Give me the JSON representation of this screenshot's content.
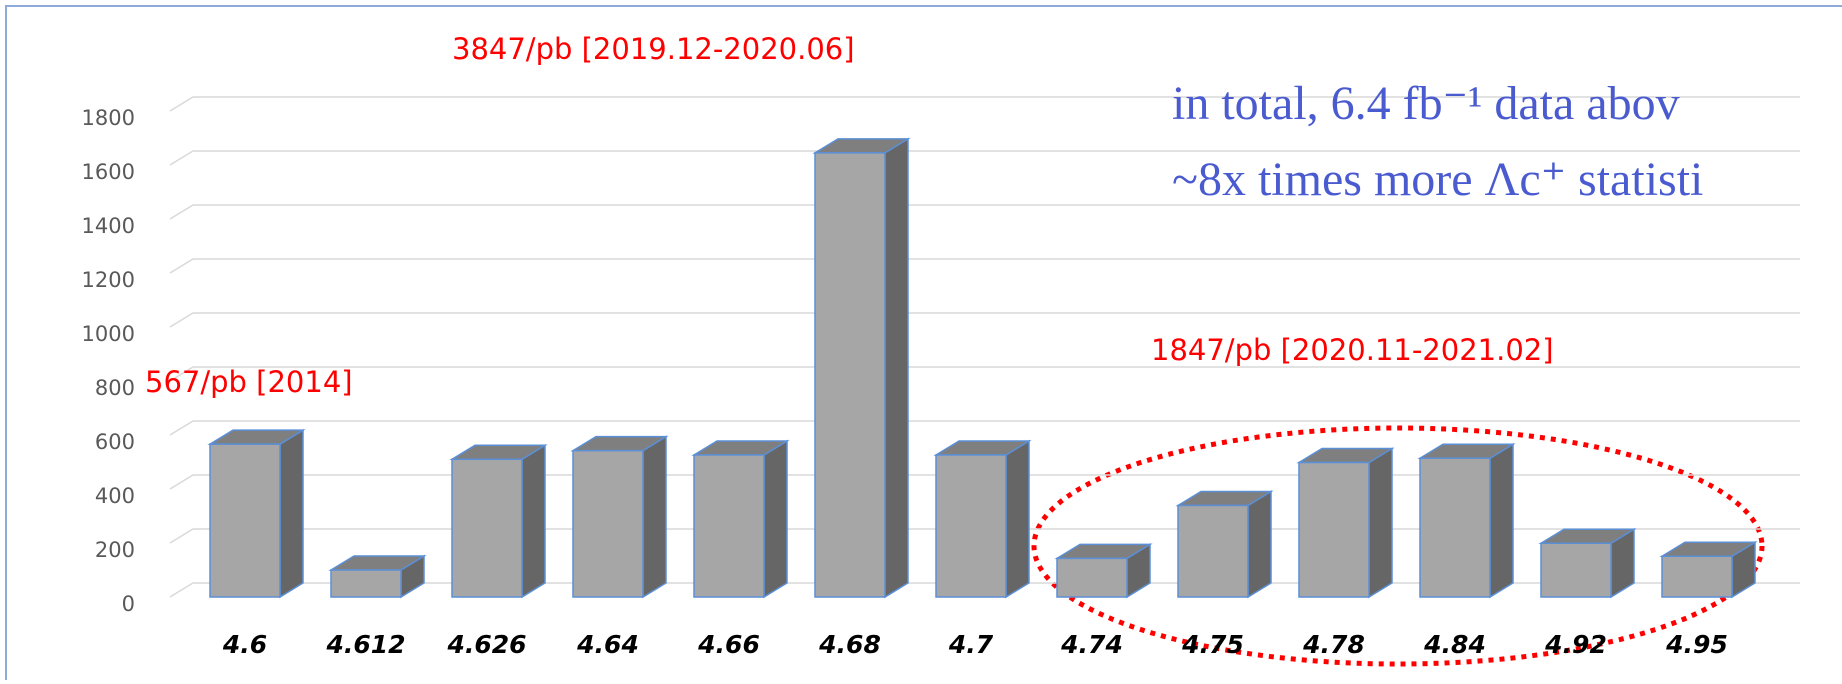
{
  "chart_data": {
    "type": "bar3d",
    "categories": [
      "4.6",
      "4.612",
      "4.626",
      "4.64",
      "4.66",
      "4.68",
      "4.7",
      "4.74",
      "4.75",
      "4.78",
      "4.84",
      "4.92",
      "4.95"
    ],
    "values": [
      566,
      100,
      510,
      542,
      526,
      1645,
      526,
      143,
      339,
      498,
      514,
      199,
      151
    ],
    "color": "#a6a6a6",
    "ylim": [
      0,
      1800
    ],
    "yticks": [
      0,
      200,
      400,
      600,
      800,
      1000,
      1200,
      1400,
      1600,
      1800
    ],
    "grid": true,
    "annotations": [
      "3847/pb [2019.12-2020.06]",
      "567/pb [2014]",
      "1847/pb [2020.11-2021.02]",
      "in total, 6.4 fb⁻¹ data abov",
      "~8x times more Λc⁺ statisti"
    ]
  }
}
